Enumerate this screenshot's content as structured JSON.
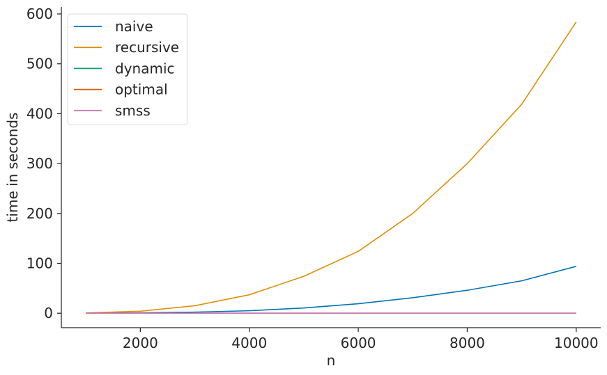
{
  "chart_data": {
    "type": "line",
    "xlabel": "n",
    "ylabel": "time in seconds",
    "xlim": [
      550,
      10450
    ],
    "ylim": [
      -29,
      614
    ],
    "x_ticks": [
      2000,
      4000,
      6000,
      8000,
      10000
    ],
    "y_ticks": [
      0,
      100,
      200,
      300,
      400,
      500,
      600
    ],
    "grid": false,
    "legend_position": "top-left",
    "x": [
      1000,
      2000,
      3000,
      4000,
      5000,
      6000,
      7000,
      8000,
      9000,
      10000
    ],
    "series": [
      {
        "name": "naive",
        "color": "#0173b2",
        "values": [
          0.1,
          0.8,
          2.2,
          5,
          10.5,
          19,
          31,
          46,
          65,
          94
        ]
      },
      {
        "name": "recursive",
        "color": "#de8f05",
        "values": [
          0.5,
          4,
          15,
          37,
          74,
          124,
          200,
          300,
          419,
          584
        ]
      },
      {
        "name": "dynamic",
        "color": "#029e73",
        "values": [
          0,
          0,
          0,
          0,
          0,
          0,
          0,
          0,
          0,
          0
        ]
      },
      {
        "name": "optimal",
        "color": "#d55e00",
        "values": [
          0,
          0,
          0,
          0,
          0,
          0,
          0,
          0,
          0,
          0
        ]
      },
      {
        "name": "smss",
        "color": "#cc78bc",
        "values": [
          0,
          0,
          0,
          0,
          0,
          0,
          0,
          0,
          0,
          0
        ]
      }
    ]
  }
}
